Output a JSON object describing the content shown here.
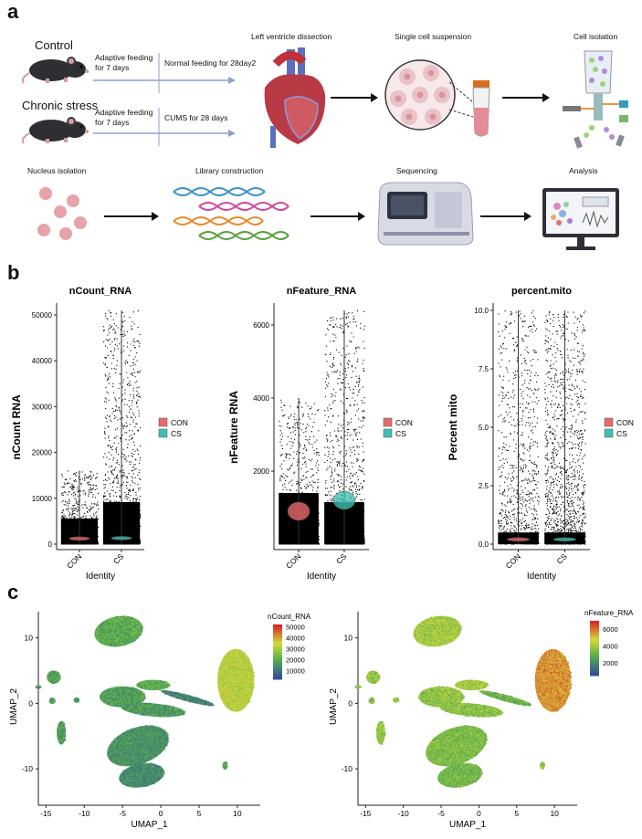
{
  "panel_a": {
    "letter": "a",
    "control_label": "Control",
    "stress_label": "Chronic stress",
    "adaptive_feeding_1": [
      "Adaptive feeding",
      "for 7 days"
    ],
    "adaptive_feeding_2": [
      "Adaptive feeding",
      "for 7 days"
    ],
    "normal_feeding": "Normal feeding for 28day2",
    "cums": "CUMS for 28 days",
    "steps_top": [
      "Left ventricle dissection",
      "Single cell suspension",
      "Cell isolation"
    ],
    "steps_bottom": [
      "Nucleus isolation",
      "Library construction",
      "Sequencing",
      "Analysis"
    ]
  },
  "panel_b": {
    "letter": "b",
    "legend": [
      "CON",
      "CS"
    ],
    "colors": {
      "CON": "#e8696b",
      "CS": "#3fbfb0"
    },
    "identity_label": "Identity",
    "groups": [
      "CON",
      "CS"
    ]
  },
  "panel_c": {
    "letter": "c"
  },
  "chart_data": [
    {
      "type": "violin",
      "title": "nCount_RNA",
      "ylabel": "nCount RNA",
      "xlabel": "Identity",
      "categories": [
        "CON",
        "CS"
      ],
      "yticks": [
        0,
        10000,
        20000,
        30000,
        40000,
        50000
      ],
      "ylim": [
        0,
        51000
      ],
      "max": [
        16000,
        51000
      ],
      "median": [
        1200,
        1300
      ]
    },
    {
      "type": "violin",
      "title": "nFeature_RNA",
      "ylabel": "nFeature RNA",
      "xlabel": "Identity",
      "categories": [
        "CON",
        "CS"
      ],
      "yticks": [
        2000,
        4000,
        6000
      ],
      "ylim": [
        0,
        6400
      ],
      "max": [
        4000,
        6400
      ],
      "median": [
        900,
        1200
      ]
    },
    {
      "type": "violin",
      "title": "percent.mito",
      "ylabel": "Percent mito",
      "xlabel": "Identity",
      "categories": [
        "CON",
        "CS"
      ],
      "yticks": [
        0.0,
        2.5,
        5.0,
        7.5,
        10.0
      ],
      "ytick_labels": [
        "0.0",
        "2.5",
        "5.0",
        "7.5",
        "10.0"
      ],
      "ylim": [
        0,
        10
      ],
      "max": [
        10,
        10
      ],
      "median": [
        0.2,
        0.2
      ]
    },
    {
      "type": "scatter",
      "title": "",
      "xlabel": "UMAP_1",
      "ylabel": "UMAP_2",
      "color_by": "nCount_RNA",
      "colorbar_ticks": [
        10000,
        20000,
        30000,
        40000,
        50000
      ],
      "xticks": [
        -15,
        -10,
        -5,
        0,
        5,
        10
      ],
      "yticks": [
        -10,
        0,
        10
      ],
      "xlim": [
        -16,
        13
      ],
      "ylim": [
        -15,
        14
      ]
    },
    {
      "type": "scatter",
      "title": "",
      "xlabel": "UMAP_1",
      "ylabel": "UMAP_2",
      "color_by": "nFeature_RNA",
      "colorbar_ticks": [
        2000,
        4000,
        6000
      ],
      "xticks": [
        -15,
        -10,
        -5,
        0,
        5,
        10
      ],
      "yticks": [
        -10,
        0,
        10
      ],
      "xlim": [
        -16,
        13
      ],
      "ylim": [
        -15,
        14
      ]
    }
  ]
}
